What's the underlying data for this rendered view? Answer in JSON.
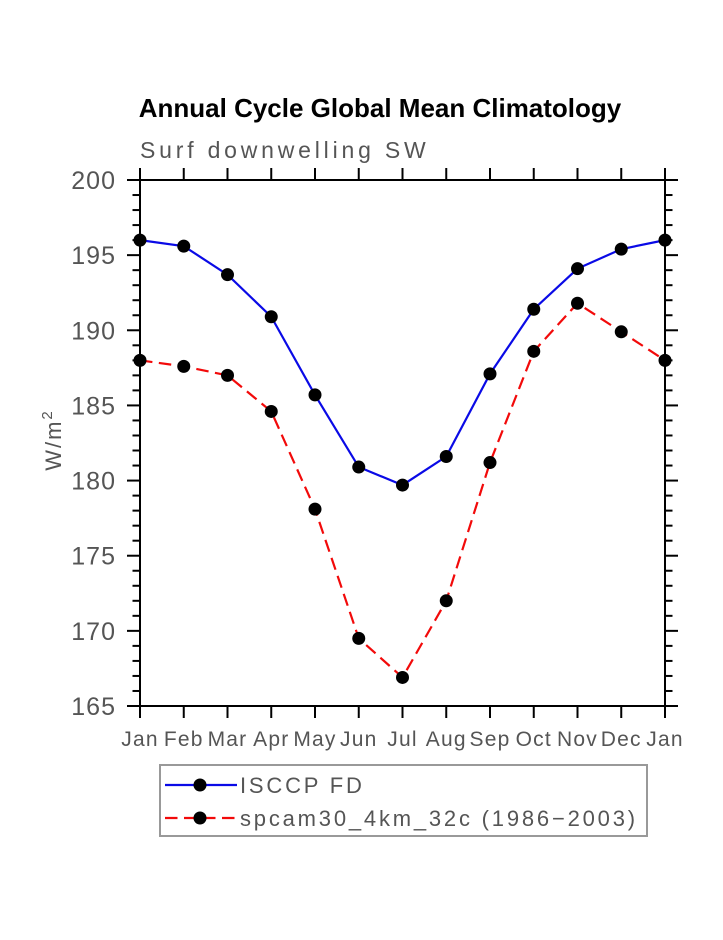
{
  "chart_data": {
    "type": "line",
    "title": "Annual Cycle Global Mean Climatology",
    "subtitle": "Surf downwelling SW",
    "ylabel_base": "W/m",
    "ylabel_exponent": "2",
    "categories": [
      "Jan",
      "Feb",
      "Mar",
      "Apr",
      "May",
      "Jun",
      "Jul",
      "Aug",
      "Sep",
      "Oct",
      "Nov",
      "Dec",
      "Jan"
    ],
    "ylim": [
      165,
      200
    ],
    "ytick_step": 5,
    "yminor_step": 1,
    "grid": false,
    "legend_position": "bottom",
    "series": [
      {
        "name": "ISCCP FD",
        "color": "#0a0ae6",
        "style": "solid",
        "marker": "circle",
        "marker_color": "#000000",
        "values": [
          196.0,
          195.6,
          193.7,
          190.9,
          185.7,
          180.9,
          179.7,
          181.6,
          187.1,
          191.4,
          194.1,
          195.4,
          196.0
        ]
      },
      {
        "name": "spcam30_4km_32c (1986−2003)",
        "color": "#f20a0a",
        "style": "dashed",
        "marker": "circle",
        "marker_color": "#000000",
        "values": [
          188.0,
          187.6,
          187.0,
          184.6,
          178.1,
          169.5,
          166.9,
          172.0,
          181.2,
          188.6,
          191.8,
          189.9,
          188.0
        ]
      }
    ]
  }
}
